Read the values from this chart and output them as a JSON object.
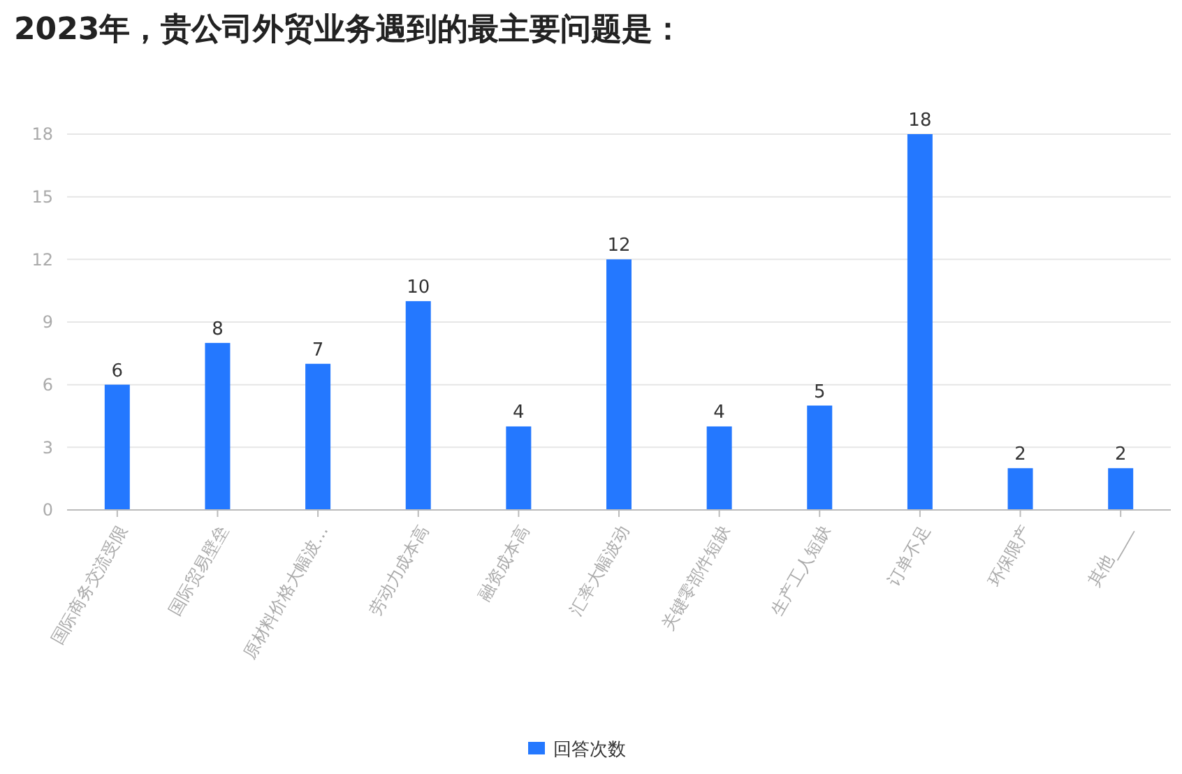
{
  "chart_data": {
    "type": "bar",
    "title": "2023年，贵公司外贸业务遇到的最主要问题是：",
    "categories": [
      "国际商务交流受限",
      "国际贸易壁垒",
      "原材料价格大幅波…",
      "劳动力成本高",
      "融资成本高",
      "汇率大幅波动",
      "关键零部件短缺",
      "生产工人短缺",
      "订单不足",
      "环保限产",
      "其他____"
    ],
    "series": [
      {
        "name": "回答次数",
        "color": "#2478ff",
        "values": [
          6,
          8,
          7,
          10,
          4,
          12,
          4,
          5,
          18,
          2,
          2
        ]
      }
    ],
    "ylim": [
      0,
      18
    ],
    "yticks": [
      0,
      3,
      6,
      9,
      12,
      15,
      18
    ],
    "grid": "y",
    "legend": "bottom",
    "data_labels": true
  }
}
